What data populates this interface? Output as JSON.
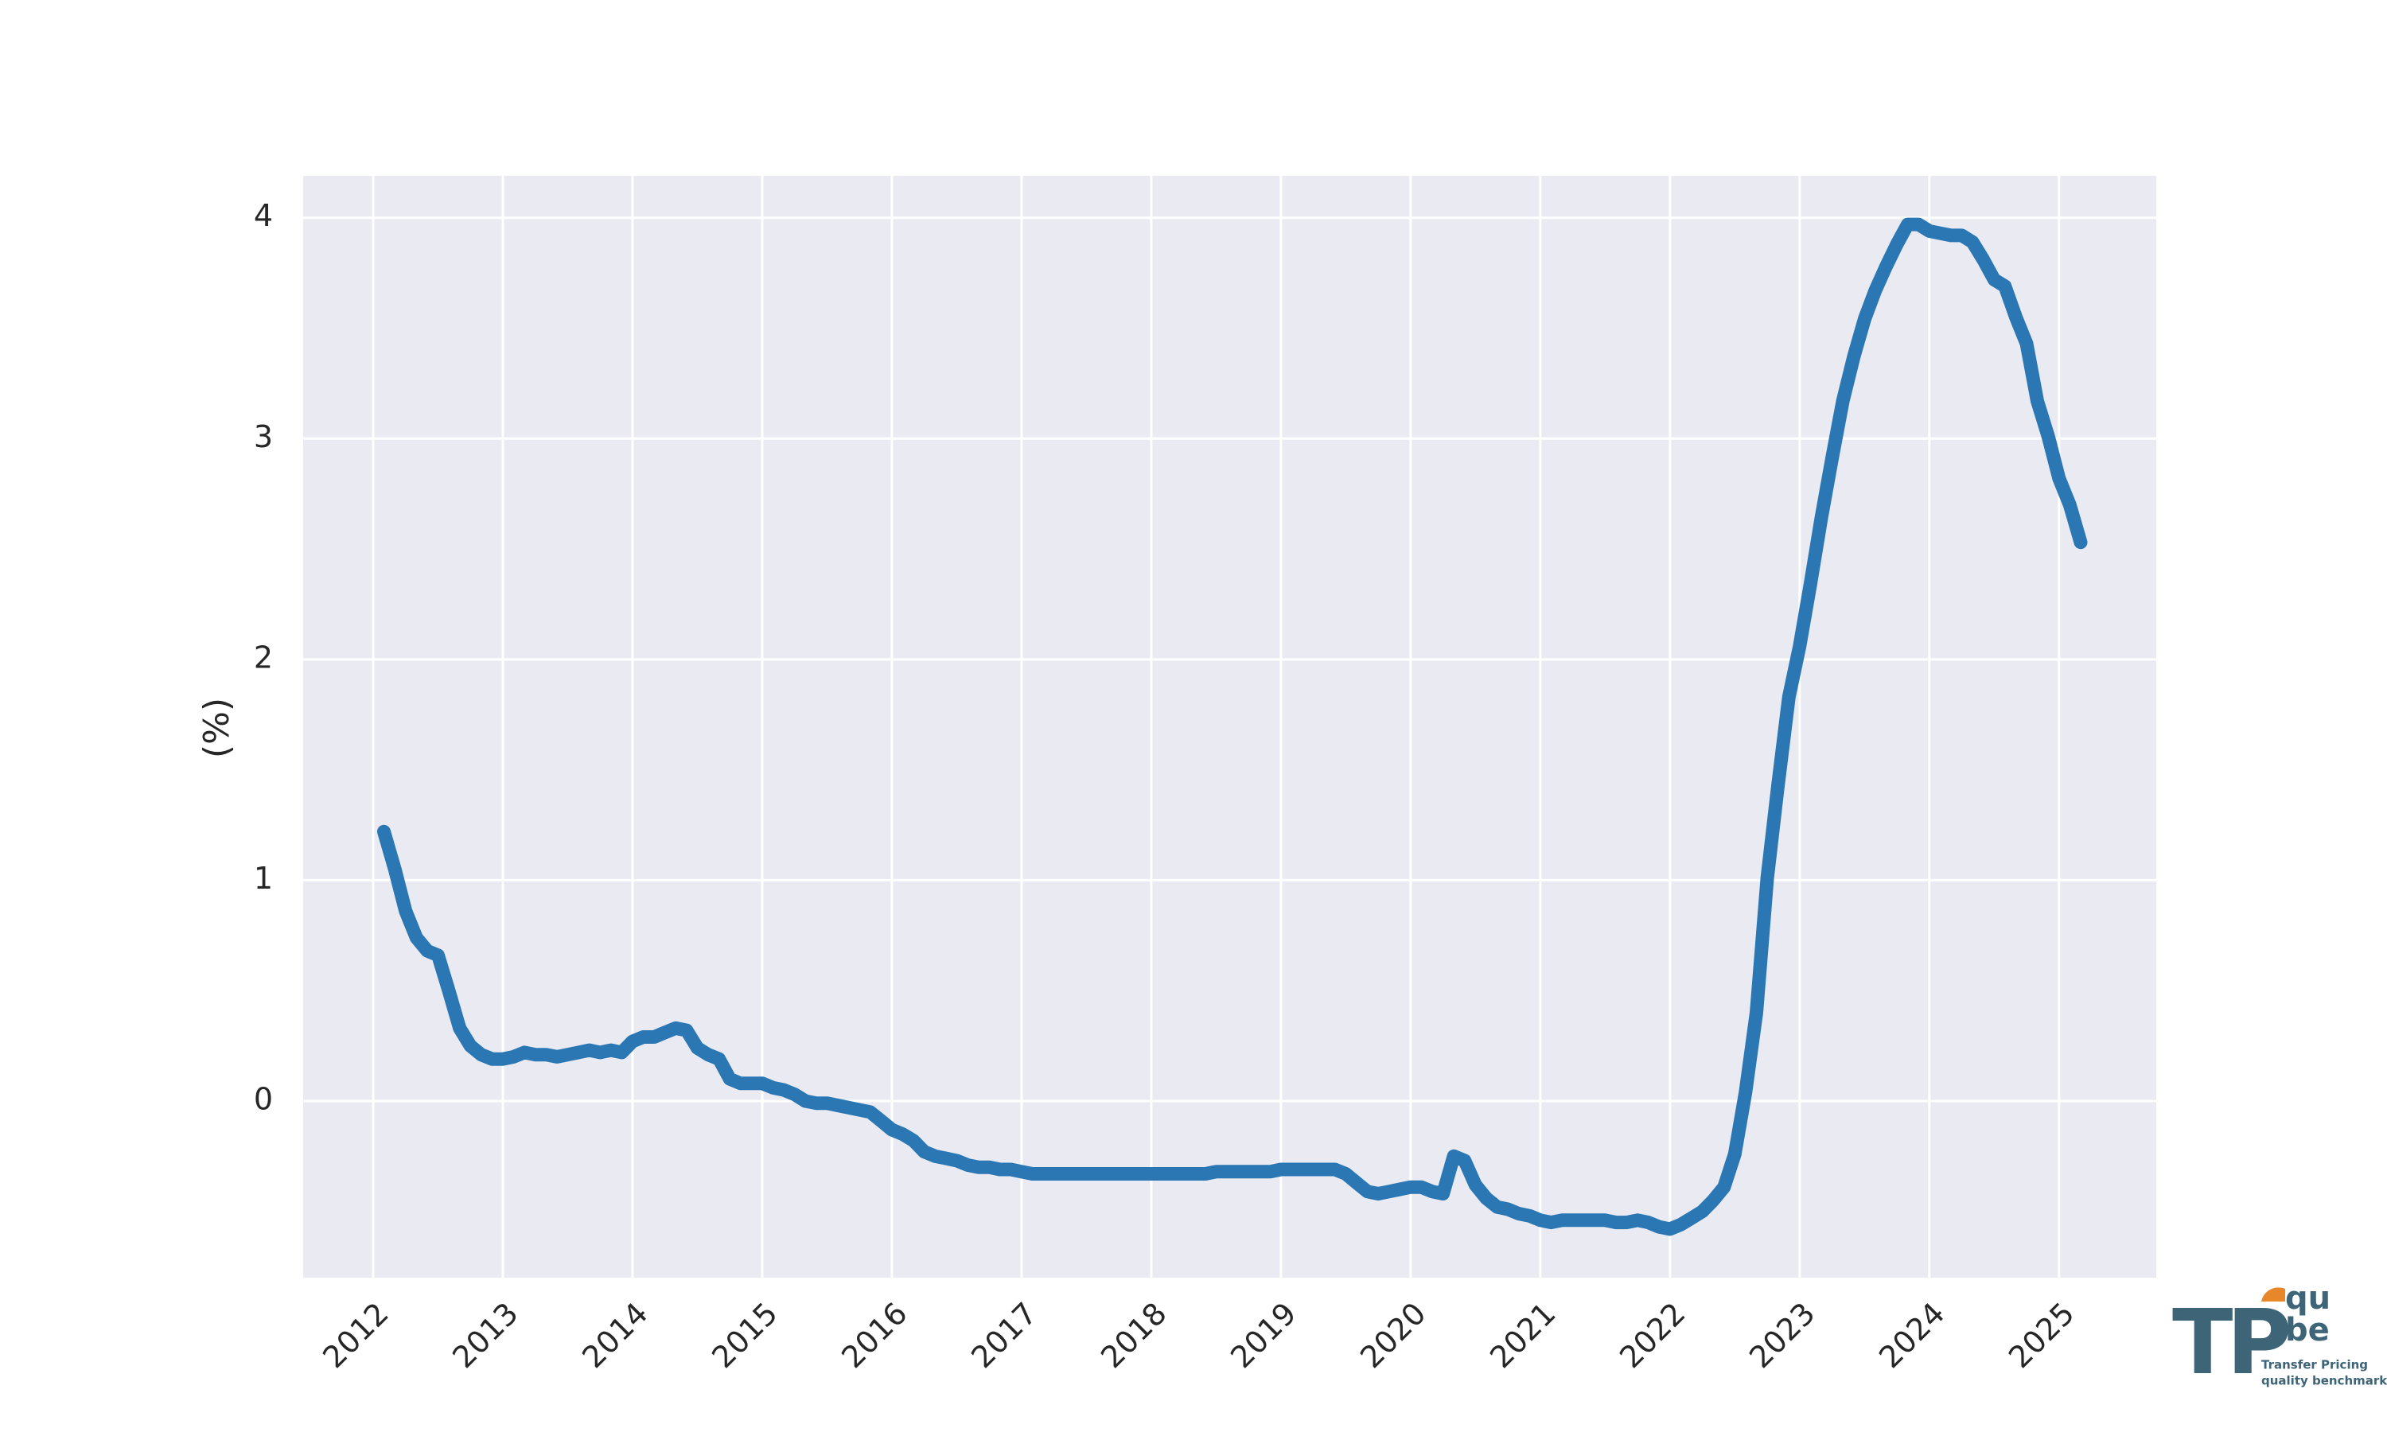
{
  "chart_data": {
    "type": "line",
    "ylabel": "(%)",
    "x": [
      2012.083,
      2012.167,
      2012.25,
      2012.333,
      2012.417,
      2012.5,
      2012.583,
      2012.667,
      2012.75,
      2012.833,
      2012.917,
      2013,
      2013.083,
      2013.167,
      2013.25,
      2013.333,
      2013.417,
      2013.5,
      2013.583,
      2013.667,
      2013.75,
      2013.833,
      2013.917,
      2014,
      2014.083,
      2014.167,
      2014.25,
      2014.333,
      2014.417,
      2014.5,
      2014.583,
      2014.667,
      2014.75,
      2014.833,
      2014.917,
      2015,
      2015.083,
      2015.167,
      2015.25,
      2015.333,
      2015.417,
      2015.5,
      2015.583,
      2015.667,
      2015.75,
      2015.833,
      2015.917,
      2016,
      2016.083,
      2016.167,
      2016.25,
      2016.333,
      2016.417,
      2016.5,
      2016.583,
      2016.667,
      2016.75,
      2016.833,
      2016.917,
      2017,
      2017.083,
      2017.167,
      2017.25,
      2017.333,
      2017.417,
      2017.5,
      2017.583,
      2017.667,
      2017.75,
      2017.833,
      2017.917,
      2018,
      2018.083,
      2018.167,
      2018.25,
      2018.333,
      2018.417,
      2018.5,
      2018.583,
      2018.667,
      2018.75,
      2018.833,
      2018.917,
      2019,
      2019.083,
      2019.167,
      2019.25,
      2019.333,
      2019.417,
      2019.5,
      2019.583,
      2019.667,
      2019.75,
      2019.833,
      2019.917,
      2020,
      2020.083,
      2020.167,
      2020.25,
      2020.333,
      2020.417,
      2020.5,
      2020.583,
      2020.667,
      2020.75,
      2020.833,
      2020.917,
      2021,
      2021.083,
      2021.167,
      2021.25,
      2021.333,
      2021.417,
      2021.5,
      2021.583,
      2021.667,
      2021.75,
      2021.833,
      2021.917,
      2022,
      2022.083,
      2022.167,
      2022.25,
      2022.333,
      2022.417,
      2022.5,
      2022.583,
      2022.667,
      2022.75,
      2022.833,
      2022.917,
      2023,
      2023.083,
      2023.167,
      2023.25,
      2023.333,
      2023.417,
      2023.5,
      2023.583,
      2023.667,
      2023.75,
      2023.833,
      2023.917,
      2024,
      2024.083,
      2024.167,
      2024.25,
      2024.333,
      2024.417,
      2024.5,
      2024.583,
      2024.667,
      2024.75,
      2024.833,
      2024.917,
      2025,
      2025.083,
      2025.167
    ],
    "series": [
      {
        "color": "#2a77b4",
        "values": [
          1.22,
          1.05,
          0.86,
          0.74,
          0.68,
          0.66,
          0.5,
          0.33,
          0.25,
          0.21,
          0.19,
          0.19,
          0.2,
          0.22,
          0.21,
          0.21,
          0.2,
          0.21,
          0.22,
          0.23,
          0.22,
          0.23,
          0.22,
          0.27,
          0.29,
          0.29,
          0.31,
          0.33,
          0.32,
          0.24,
          0.21,
          0.19,
          0.1,
          0.08,
          0.08,
          0.08,
          0.06,
          0.05,
          0.03,
          0.0,
          -0.01,
          -0.01,
          -0.02,
          -0.03,
          -0.04,
          -0.05,
          -0.09,
          -0.13,
          -0.15,
          -0.18,
          -0.23,
          -0.25,
          -0.26,
          -0.27,
          -0.29,
          -0.3,
          -0.3,
          -0.31,
          -0.31,
          -0.32,
          -0.33,
          -0.33,
          -0.33,
          -0.33,
          -0.33,
          -0.33,
          -0.33,
          -0.33,
          -0.33,
          -0.33,
          -0.33,
          -0.33,
          -0.33,
          -0.33,
          -0.33,
          -0.33,
          -0.33,
          -0.32,
          -0.32,
          -0.32,
          -0.32,
          -0.32,
          -0.32,
          -0.31,
          -0.31,
          -0.31,
          -0.31,
          -0.31,
          -0.31,
          -0.33,
          -0.37,
          -0.41,
          -0.42,
          -0.41,
          -0.4,
          -0.39,
          -0.39,
          -0.41,
          -0.42,
          -0.25,
          -0.27,
          -0.38,
          -0.44,
          -0.48,
          -0.49,
          -0.51,
          -0.52,
          -0.54,
          -0.55,
          -0.54,
          -0.54,
          -0.54,
          -0.54,
          -0.54,
          -0.55,
          -0.55,
          -0.54,
          -0.55,
          -0.57,
          -0.58,
          -0.56,
          -0.53,
          -0.5,
          -0.45,
          -0.39,
          -0.24,
          0.04,
          0.4,
          1.01,
          1.43,
          1.83,
          2.06,
          2.34,
          2.64,
          2.91,
          3.17,
          3.37,
          3.54,
          3.67,
          3.78,
          3.88,
          3.97,
          3.97,
          3.94,
          3.93,
          3.92,
          3.92,
          3.89,
          3.81,
          3.72,
          3.69,
          3.55,
          3.43,
          3.17,
          3.01,
          2.82,
          2.7,
          2.53
        ]
      }
    ],
    "xlim": [
      2011.46,
      2025.75
    ],
    "xticks": [
      2012,
      2013,
      2014,
      2015,
      2016,
      2017,
      2018,
      2019,
      2020,
      2021,
      2022,
      2023,
      2024,
      2025
    ],
    "ylim": [
      -0.8,
      4.19
    ],
    "yticks": [
      0,
      1,
      2,
      3,
      4
    ],
    "grid": true,
    "background": "#eaeaf2"
  },
  "logo": {
    "mark": "TP",
    "top": "qu",
    "bottom": "be",
    "line1": "Transfer Pricing",
    "line2": "quality benchmarks"
  }
}
